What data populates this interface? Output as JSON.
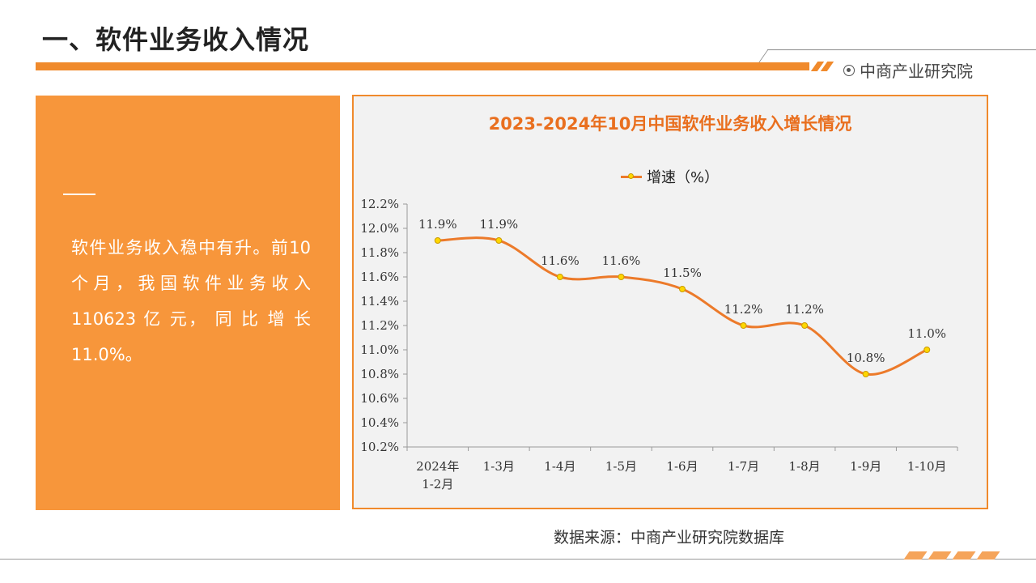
{
  "header": {
    "title": "一、软件业务收入情况",
    "brand": "中商产业研究院"
  },
  "panel": {
    "text": "软件业务收入稳中有升。前10个月，我国软件业务收入110623 亿 元， 同 比 增 长11.0%。"
  },
  "source": "数据来源：中商产业研究院数据库",
  "colors": {
    "accent": "#f08a2c",
    "panel": "#f7963b",
    "line": "#ec7a2a",
    "marker": "#ffd700"
  },
  "chart_data": {
    "type": "line",
    "title": "2023-2024年10月中国软件业务收入增长情况",
    "categories": [
      "2024年\n1-2月",
      "1-3月",
      "1-4月",
      "1-5月",
      "1-6月",
      "1-7月",
      "1-8月",
      "1-9月",
      "1-10月"
    ],
    "series": [
      {
        "name": "增速（%）",
        "values": [
          11.9,
          11.9,
          11.6,
          11.6,
          11.5,
          11.2,
          11.2,
          10.8,
          11.0
        ]
      }
    ],
    "data_labels": [
      "11.9%",
      "11.9%",
      "11.6%",
      "11.6%",
      "11.5%",
      "11.2%",
      "11.2%",
      "10.8%",
      "11.0%"
    ],
    "ylim": [
      10.2,
      12.2
    ],
    "yticks": [
      "10.2%",
      "10.4%",
      "10.6%",
      "10.8%",
      "11.0%",
      "11.2%",
      "11.4%",
      "11.6%",
      "11.8%",
      "12.0%",
      "12.2%"
    ],
    "grid": false,
    "legend": "top-center"
  }
}
